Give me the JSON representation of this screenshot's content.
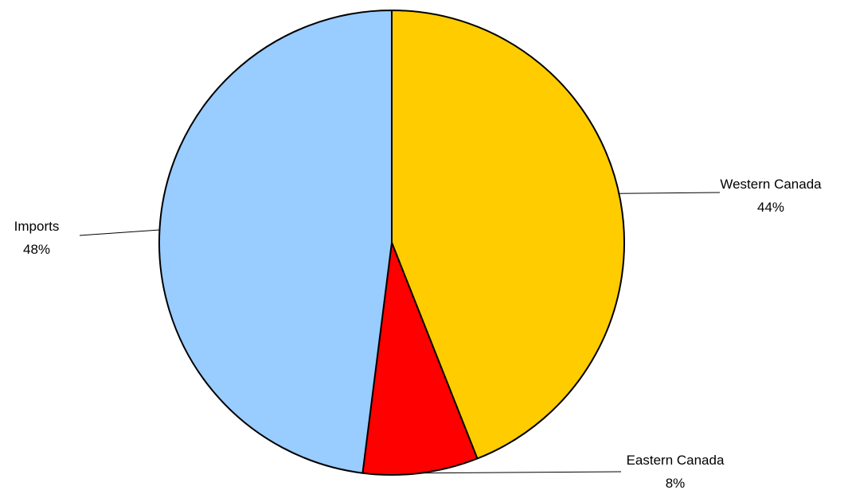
{
  "chart_data": {
    "type": "pie",
    "title": "",
    "slices": [
      {
        "name": "Western Canada",
        "value": 44,
        "label": "44%",
        "color": "#FFCC00"
      },
      {
        "name": "Eastern Canada",
        "value": 8,
        "label": "8%",
        "color": "#FF0000"
      },
      {
        "name": "Imports",
        "value": 48,
        "label": "48%",
        "color": "#99CCFF"
      }
    ],
    "start_angle": "12 o'clock",
    "direction": "clockwise",
    "legend": "none"
  }
}
